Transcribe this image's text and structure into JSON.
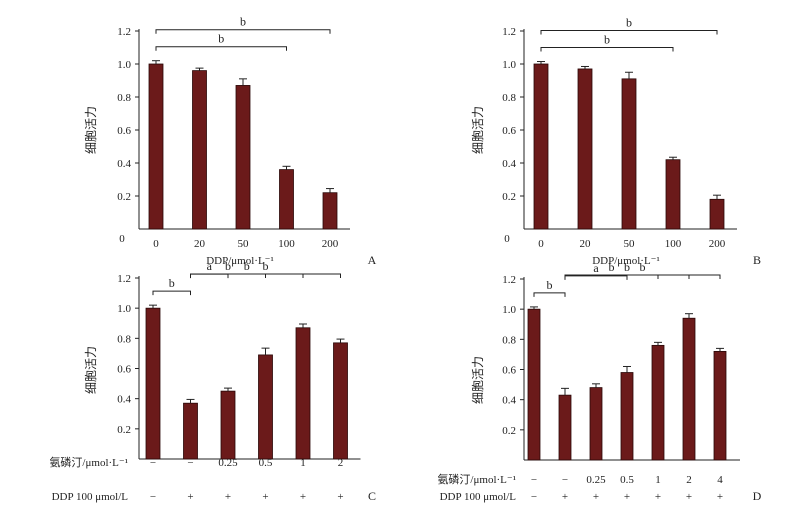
{
  "chart_data": [
    {
      "panel": "A",
      "type": "bar",
      "ylabel": "细胞活力",
      "xlabel": "DDP/μmol·L⁻¹",
      "ylim": [
        0,
        1.2
      ],
      "yticks": [
        "0",
        "0.2",
        "0.4",
        "0.6",
        "0.8",
        "1.0",
        "1.2"
      ],
      "categories": [
        "0",
        "20",
        "50",
        "100",
        "200"
      ],
      "values": [
        1.0,
        0.96,
        0.87,
        0.36,
        0.22
      ],
      "errors": [
        0.02,
        0.015,
        0.04,
        0.02,
        0.025
      ],
      "bar_color": "#6b1a1a",
      "significance": [
        {
          "from": 0,
          "to": 3,
          "label": "b"
        },
        {
          "from": 0,
          "to": 4,
          "label": "b"
        }
      ]
    },
    {
      "panel": "B",
      "type": "bar",
      "ylabel": "细胞活力",
      "xlabel": "DDP/μmol·L⁻¹",
      "ylim": [
        0,
        1.2
      ],
      "yticks": [
        "0",
        "0.2",
        "0.4",
        "0.6",
        "0.8",
        "1.0",
        "1.2"
      ],
      "categories": [
        "0",
        "20",
        "50",
        "100",
        "200"
      ],
      "values": [
        1.0,
        0.97,
        0.91,
        0.42,
        0.18
      ],
      "errors": [
        0.015,
        0.015,
        0.04,
        0.015,
        0.025
      ],
      "bar_color": "#6b1a1a",
      "significance": [
        {
          "from": 0,
          "to": 3,
          "label": "b"
        },
        {
          "from": 0,
          "to": 4,
          "label": "b"
        }
      ]
    },
    {
      "panel": "C",
      "type": "bar",
      "ylabel": "细胞活力",
      "ylim": [
        0,
        1.2
      ],
      "yticks": [
        "0.2",
        "0.4",
        "0.6",
        "0.8",
        "1.0",
        "1.2"
      ],
      "row1_label": "氨磷汀/μmol·L⁻¹",
      "row2_label": "DDP 100 μmol/L",
      "row1": [
        "−",
        "−",
        "0.25",
        "0.5",
        "1",
        "2"
      ],
      "row2": [
        "−",
        "+",
        "+",
        "+",
        "+",
        "+"
      ],
      "values": [
        1.0,
        0.37,
        0.45,
        0.69,
        0.87,
        0.77
      ],
      "errors": [
        0.02,
        0.025,
        0.02,
        0.045,
        0.025,
        0.025
      ],
      "bar_color": "#6b1a1a",
      "significance": [
        {
          "from": 0,
          "to": 1,
          "label": "b"
        },
        {
          "from": 1,
          "to": 2,
          "label": "a"
        },
        {
          "from": 1,
          "to": 3,
          "label": "b"
        },
        {
          "from": 1,
          "to": 4,
          "label": "b"
        },
        {
          "from": 1,
          "to": 5,
          "label": "b"
        }
      ]
    },
    {
      "panel": "D",
      "type": "bar",
      "ylabel": "细胞活力",
      "ylim": [
        0,
        1.2
      ],
      "yticks": [
        "0.2",
        "0.4",
        "0.6",
        "0.8",
        "1.0",
        "1.2"
      ],
      "row1_label": "氨磷汀/μmol·L⁻¹",
      "row2_label": "DDP 100 μmol/L",
      "row1": [
        "−",
        "−",
        "0.25",
        "0.5",
        "1",
        "2",
        "4"
      ],
      "row2": [
        "−",
        "+",
        "+",
        "+",
        "+",
        "+",
        "+"
      ],
      "values": [
        1.0,
        0.43,
        0.48,
        0.58,
        0.76,
        0.94,
        0.72
      ],
      "errors": [
        0.015,
        0.045,
        0.025,
        0.04,
        0.02,
        0.03,
        0.02
      ],
      "bar_color": "#6b1a1a",
      "significance": [
        {
          "from": 0,
          "to": 1,
          "label": "b"
        },
        {
          "from": 1,
          "to": 3,
          "label": "a"
        },
        {
          "from": 1,
          "to": 4,
          "label": "b"
        },
        {
          "from": 1,
          "to": 5,
          "label": "b"
        },
        {
          "from": 1,
          "to": 6,
          "label": "b"
        }
      ]
    }
  ]
}
